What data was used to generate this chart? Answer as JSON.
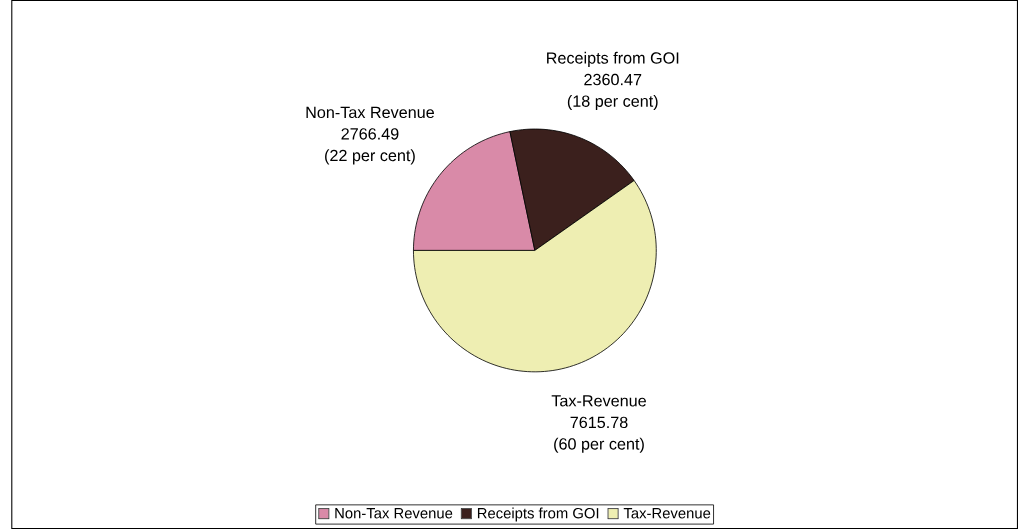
{
  "chart_data": {
    "type": "pie",
    "categories": [
      "Non-Tax Revenue",
      "Receipts from GOI",
      "Tax-Revenue"
    ],
    "values": [
      2766.49,
      2360.47,
      7615.78
    ],
    "colors": [
      "#d98aa8",
      "#3b201d",
      "#eeeeb2"
    ],
    "data_labels": true,
    "annotations": [
      "(22 per cent)",
      "(18 per cent)",
      "(60 per cent)"
    ],
    "legend": "bottom"
  }
}
